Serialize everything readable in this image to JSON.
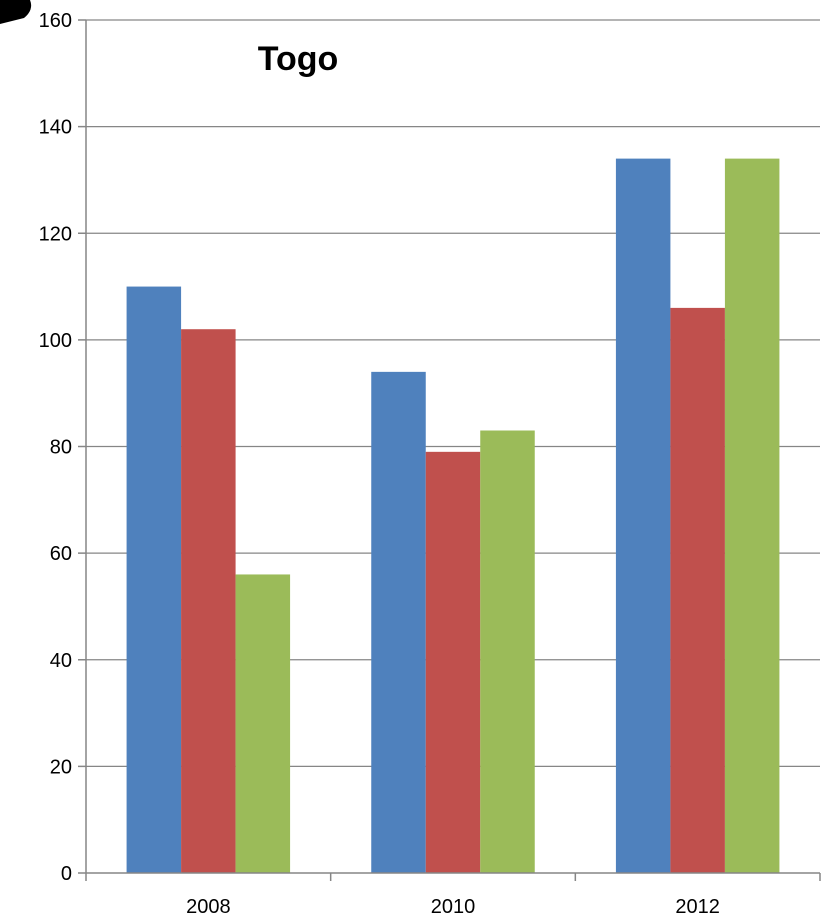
{
  "chart_data": {
    "type": "bar",
    "title": "Togo",
    "categories": [
      "2008",
      "2010",
      "2012"
    ],
    "series": [
      {
        "values": [
          110,
          94,
          134
        ],
        "color": "#4F81BD"
      },
      {
        "values": [
          102,
          79,
          106
        ],
        "color": "#C0504D"
      },
      {
        "values": [
          56,
          83,
          134
        ],
        "color": "#9BBB59"
      }
    ],
    "ylim": [
      0,
      160
    ],
    "yticks": [
      0,
      20,
      40,
      60,
      80,
      100,
      120,
      140,
      160
    ],
    "grid": true,
    "legend": "none"
  }
}
